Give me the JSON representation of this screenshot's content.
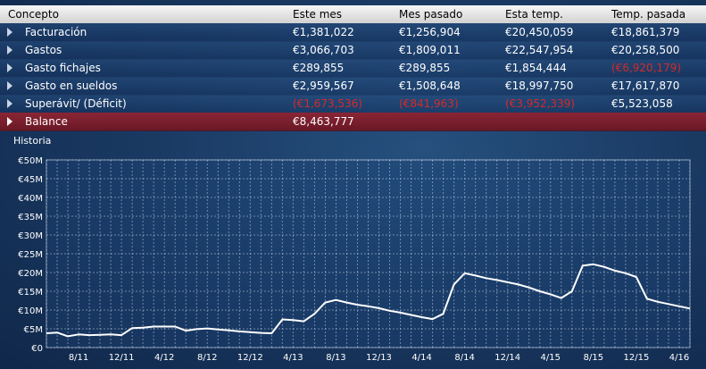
{
  "table": {
    "headers": [
      "Concepto",
      "Este mes",
      "Mes pasado",
      "Esta temp.",
      "Temp. pasada"
    ],
    "rows": [
      {
        "label": "Facturación",
        "values": [
          "€1,381,022",
          "€1,256,904",
          "€20,450,059",
          "€18,861,379"
        ],
        "negative": [
          false,
          false,
          false,
          false
        ]
      },
      {
        "label": "Gastos",
        "values": [
          "€3,066,703",
          "€1,809,011",
          "€22,547,954",
          "€20,258,500"
        ],
        "negative": [
          false,
          false,
          false,
          false
        ]
      },
      {
        "label": "Gasto fichajes",
        "values": [
          "€289,855",
          "€289,855",
          "€1,854,444",
          "(€6,920,179)"
        ],
        "negative": [
          false,
          false,
          false,
          true
        ]
      },
      {
        "label": "Gasto en sueldos",
        "values": [
          "€2,959,567",
          "€1,508,648",
          "€18,997,750",
          "€17,617,870"
        ],
        "negative": [
          false,
          false,
          false,
          false
        ]
      },
      {
        "label": "Superávit/ (Déficit)",
        "values": [
          "(€1,673,536)",
          "(€841,963)",
          "(€3,952,339)",
          "€5,523,058"
        ],
        "negative": [
          true,
          true,
          true,
          false
        ]
      }
    ],
    "balance": {
      "label": "Balance",
      "value": "€8,463,777"
    }
  },
  "history": {
    "title": "Historia"
  },
  "chart_data": {
    "type": "line",
    "title": "",
    "xlabel": "",
    "ylabel": "",
    "ylim": [
      0,
      50
    ],
    "y_unit": "€M",
    "y_ticks": [
      "€0",
      "€5M",
      "€10M",
      "€15M",
      "€20M",
      "€25M",
      "€30M",
      "€35M",
      "€40M",
      "€45M",
      "€50M"
    ],
    "x_ticks": [
      "8/11",
      "12/11",
      "4/12",
      "8/12",
      "12/12",
      "4/13",
      "8/13",
      "12/13",
      "4/14",
      "8/14",
      "12/14",
      "4/15",
      "8/15",
      "12/15",
      "4/16"
    ],
    "x_months": [
      "5/11",
      "6/11",
      "7/11",
      "8/11",
      "9/11",
      "10/11",
      "11/11",
      "12/11",
      "1/12",
      "2/12",
      "3/12",
      "4/12",
      "5/12",
      "6/12",
      "7/12",
      "8/12",
      "9/12",
      "10/12",
      "11/12",
      "12/12",
      "1/13",
      "2/13",
      "3/13",
      "4/13",
      "5/13",
      "6/13",
      "7/13",
      "8/13",
      "9/13",
      "10/13",
      "11/13",
      "12/13",
      "1/14",
      "2/14",
      "3/14",
      "4/14",
      "5/14",
      "6/14",
      "7/14",
      "8/14",
      "9/14",
      "10/14",
      "11/14",
      "12/14",
      "1/15",
      "2/15",
      "3/15",
      "4/15",
      "5/15",
      "6/15",
      "7/15",
      "8/15",
      "9/15",
      "10/15",
      "11/15",
      "12/15",
      "1/16",
      "2/16",
      "3/16",
      "4/16",
      "5/16"
    ],
    "series": [
      {
        "values": [
          3.8,
          4.0,
          3.0,
          3.5,
          3.3,
          3.4,
          3.5,
          3.3,
          5.2,
          5.3,
          5.6,
          5.6,
          5.6,
          4.5,
          4.9,
          5.1,
          4.8,
          4.6,
          4.3,
          4.1,
          3.9,
          3.8,
          7.5,
          7.3,
          7.0,
          9.0,
          12.0,
          12.7,
          12.0,
          11.4,
          11.0,
          10.5,
          9.8,
          9.3,
          8.7,
          8.1,
          7.6,
          9.0,
          16.8,
          19.8,
          19.2,
          18.5,
          18.0,
          17.4,
          16.8,
          16.0,
          15.0,
          14.2,
          13.2,
          15.0,
          21.8,
          22.2,
          21.5,
          20.5,
          19.8,
          18.8,
          13.0,
          12.2,
          11.6,
          11.0,
          10.4
        ]
      }
    ],
    "grid": true,
    "line_color": "#ffffff"
  }
}
